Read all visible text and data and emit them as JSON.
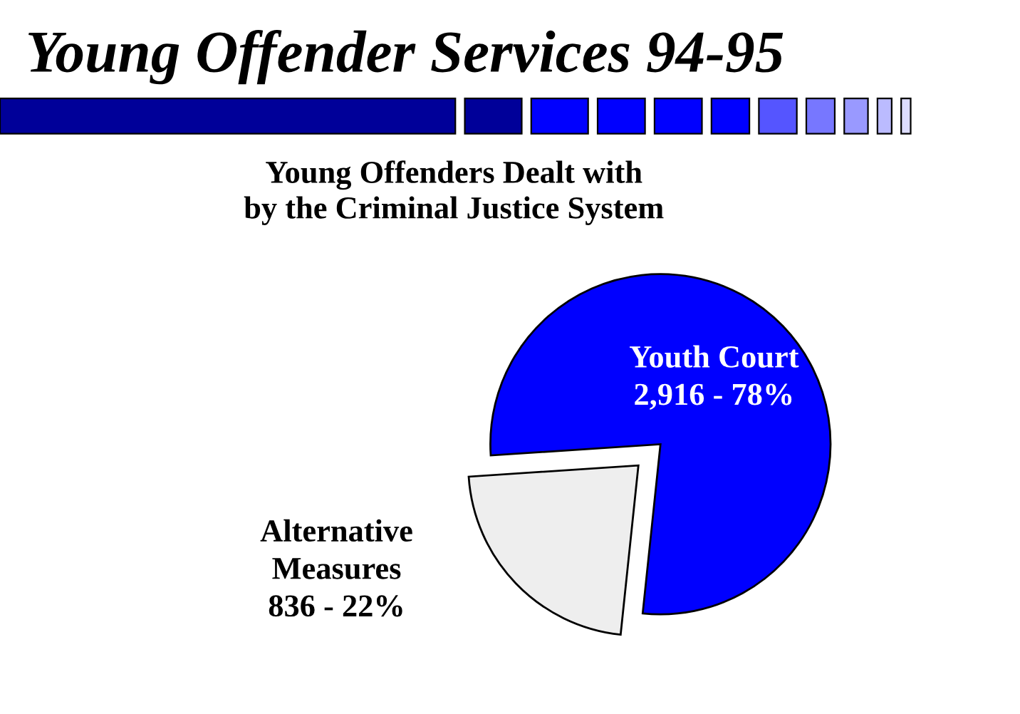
{
  "chart_data": {
    "type": "pie",
    "title": "Young Offender Services 94-95",
    "subtitle": "Young Offenders Dealt with\nby the Criminal Justice System",
    "categories": [
      "Youth Court",
      "Alternative\nMeasures"
    ],
    "values": [
      2916,
      836
    ],
    "value_labels": [
      "2,916 - 78%",
      "836 - 22%"
    ],
    "colors": [
      "#0000ff",
      "#eeeeee"
    ],
    "legend": false
  }
}
